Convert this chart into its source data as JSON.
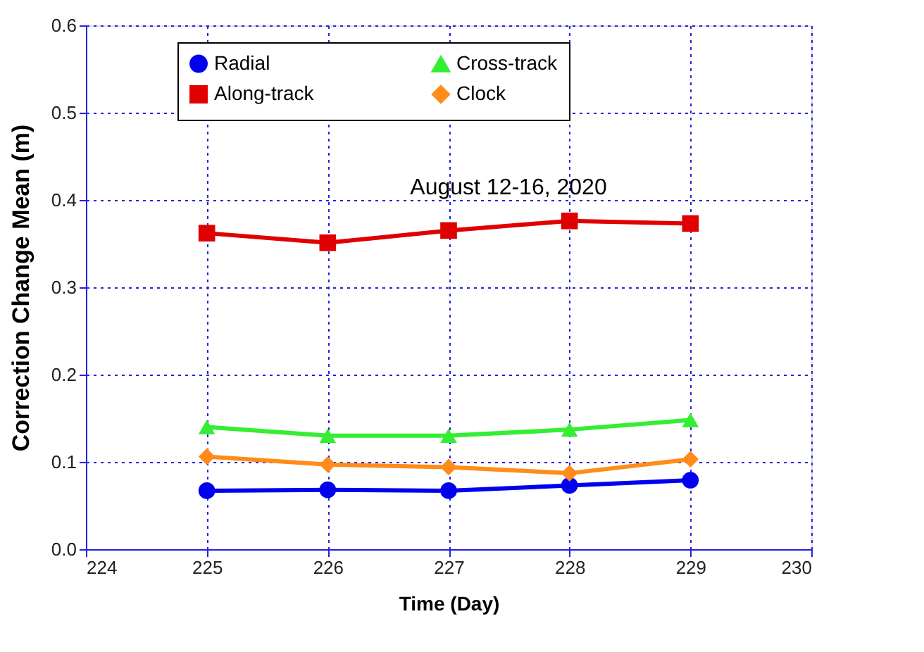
{
  "chart_data": {
    "type": "line",
    "xlabel": "Time (Day)",
    "ylabel": "Correction Change Mean (m)",
    "annotations": [
      "August 12-16, 2020"
    ],
    "x": [
      225,
      226,
      227,
      228,
      229
    ],
    "xlim": [
      224,
      230
    ],
    "xticks": [
      224,
      225,
      226,
      227,
      228,
      229,
      230
    ],
    "ylim": [
      0,
      0.6
    ],
    "yticks": [
      {
        "value": 0,
        "label": "0.0"
      },
      0.1,
      0.2,
      0.3,
      0.4,
      0.5,
      0.6
    ],
    "grid": true,
    "legend": "top",
    "line_style": "solid",
    "series": [
      {
        "name": "Radial",
        "color": "#0000ee",
        "marker": "circle",
        "values": [
          0.067,
          0.068,
          0.067,
          0.073,
          0.079
        ]
      },
      {
        "name": "Along-track",
        "color": "#e00000",
        "marker": "square",
        "values": [
          0.362,
          0.351,
          0.365,
          0.376,
          0.373
        ]
      },
      {
        "name": "Cross-track",
        "color": "#33ee33",
        "marker": "triangle",
        "values": [
          0.14,
          0.13,
          0.13,
          0.137,
          0.148
        ]
      },
      {
        "name": "Clock",
        "color": "#ff8c1a",
        "marker": "diamond",
        "values": [
          0.106,
          0.097,
          0.094,
          0.087,
          0.103
        ]
      }
    ]
  }
}
